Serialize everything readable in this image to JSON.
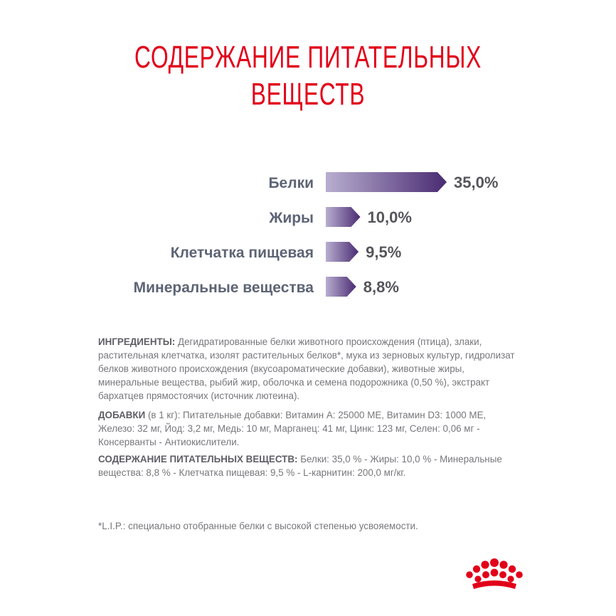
{
  "title": {
    "line1": "СОДЕРЖАНИЕ ПИТАТЕЛЬНЫХ",
    "line2": "ВЕЩЕСТВ"
  },
  "chart_data": {
    "type": "bar",
    "orientation": "horizontal",
    "title": "СОДЕРЖАНИЕ ПИТАТЕЛЬНЫХ ВЕЩЕСТВ",
    "categories": [
      "Белки",
      "Жиры",
      "Клетчатка пищевая",
      "Минеральные вещества"
    ],
    "values": [
      35.0,
      10.0,
      9.5,
      8.8
    ],
    "value_labels": [
      "35,0%",
      "10,0%",
      "9,5%",
      "8,8%"
    ],
    "unit": "%",
    "bar_gradient": [
      "#b8aed0",
      "#4a2b72"
    ],
    "label_color": "#5d6475",
    "value_color": "#55555c"
  },
  "ingredients": {
    "heading": "ИНГРЕДИЕНТЫ:",
    "text": "Дегидратированные белки животного происхождения (птица), злаки, растительная клетчатка, изолят растительных белков*, мука из зерновых культур, гидролизат белков животного происхождения (вкусоароматические добавки), животные жиры, минеральные вещества, рыбий жир, оболочка и семена подорожника (0,50 %), экстракт бархатцев прямостоячих (источник лютеина)."
  },
  "additives": {
    "heading": "ДОБАВКИ",
    "text": "(в 1 кг): Питательные добавки: Витамин A: 25000 МЕ, Витамин D3: 1000 МЕ, Железо: 32 мг, Йод: 3,2 мг, Медь: 10 мг, Марганец: 41 мг, Цинк: 123 мг, Селен: 0,06 мг - Консерванты - Антиокислители."
  },
  "nutrients": {
    "heading": "СОДЕРЖАНИЕ ПИТАТЕЛЬНЫХ ВЕЩЕСТВ:",
    "text": "Белки: 35,0 % - Жиры: 10,0 % - Минеральные вещества: 8,8 % - Клетчатка пищевая: 9,5 % - L-карнитин: 200,0 мг/кг."
  },
  "footnote": "*L.I.P.: специально отобранные белки с высокой степенью усвояемости.",
  "brand": {
    "logo_icon": "royal-canin-crown-icon",
    "color": "#e2001a"
  }
}
